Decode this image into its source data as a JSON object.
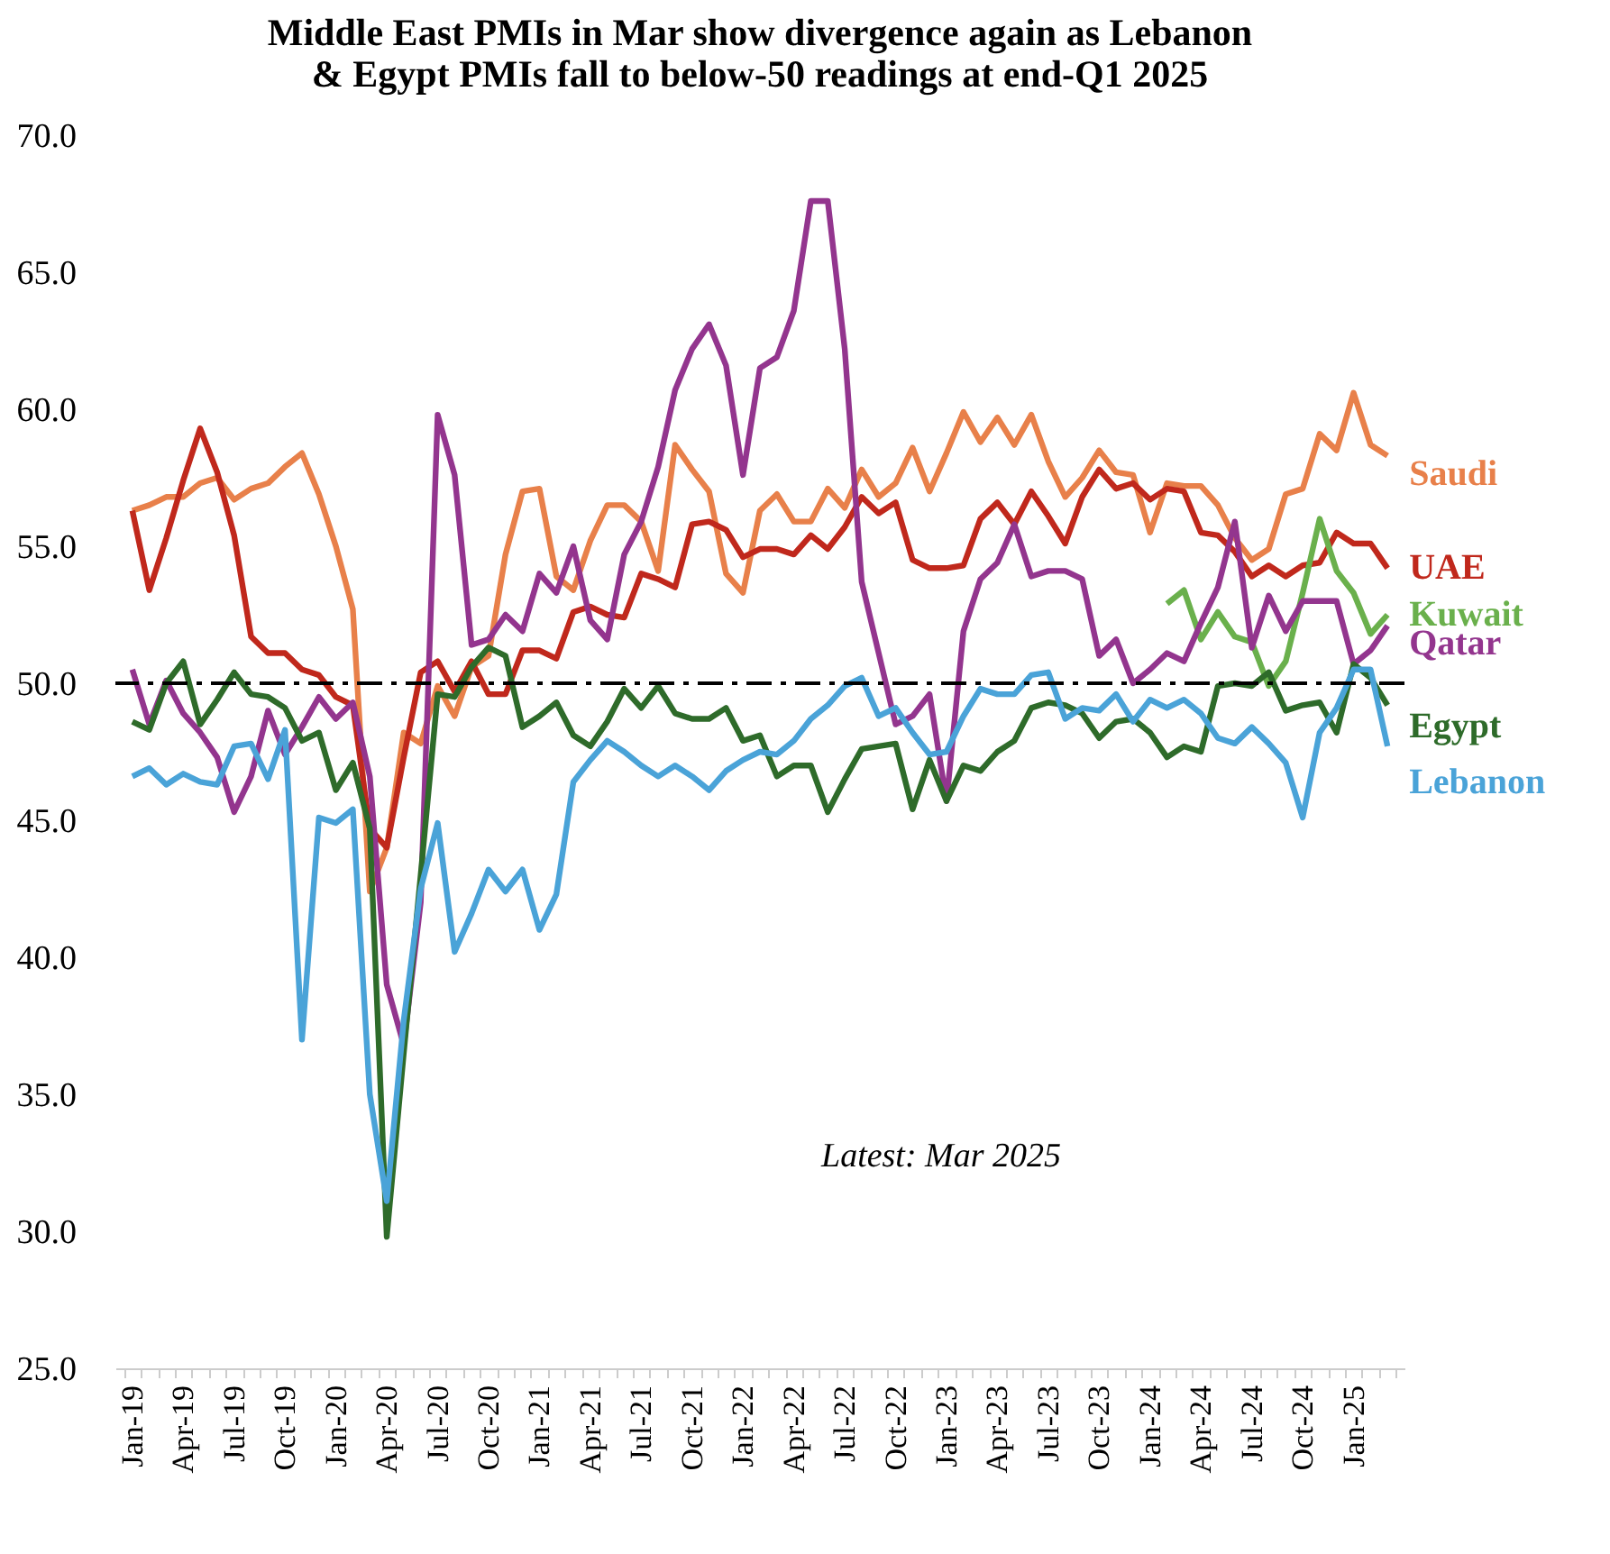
{
  "chart_data": {
    "type": "line",
    "title": [
      "Middle East PMIs in Mar show divergence again as Lebanon",
      "& Egypt PMIs fall to below-50 readings at end-Q1 2025"
    ],
    "categories": [
      "Jan-19",
      null,
      null,
      "Apr-19",
      null,
      null,
      "Jul-19",
      null,
      null,
      "Oct-19",
      null,
      null,
      "Jan-20",
      null,
      null,
      "Apr-20",
      null,
      null,
      "Jul-20",
      null,
      null,
      "Oct-20",
      null,
      null,
      "Jan-21",
      null,
      null,
      "Apr-21",
      null,
      null,
      "Jul-21",
      null,
      null,
      "Oct-21",
      null,
      null,
      "Jan-22",
      null,
      null,
      "Apr-22",
      null,
      null,
      "Jul-22",
      null,
      null,
      "Oct-22",
      null,
      null,
      "Jan-23",
      null,
      null,
      "Apr-23",
      null,
      null,
      "Jul-23",
      null,
      null,
      "Oct-23",
      null,
      null,
      "Jan-24",
      null,
      null,
      "Apr-24",
      null,
      null,
      "Jul-24",
      null,
      null,
      "Oct-24",
      null,
      null,
      "Jan-25",
      null,
      null
    ],
    "series": [
      {
        "name": "Saudi",
        "color": "#e8804a",
        "values": [
          56.3,
          56.5,
          56.8,
          56.8,
          57.3,
          57.5,
          56.7,
          57.1,
          57.3,
          57.9,
          58.4,
          56.9,
          55.0,
          52.7,
          42.4,
          44.0,
          48.2,
          47.8,
          49.9,
          48.8,
          50.6,
          51.0,
          54.7,
          57.0,
          57.1,
          53.9,
          53.4,
          55.2,
          56.5,
          56.5,
          55.9,
          54.1,
          58.7,
          57.8,
          57.0,
          54.0,
          53.3,
          56.3,
          56.9,
          55.9,
          55.9,
          57.1,
          56.4,
          57.8,
          56.8,
          57.3,
          58.6,
          57.0,
          58.4,
          59.9,
          58.8,
          59.7,
          58.7,
          59.8,
          58.1,
          56.8,
          57.5,
          58.5,
          57.7,
          57.6,
          55.5,
          57.3,
          57.2,
          57.2,
          56.5,
          55.3,
          54.5,
          54.9,
          56.9,
          57.1,
          59.1,
          58.5,
          60.6,
          58.7,
          58.3
        ]
      },
      {
        "name": "UAE",
        "color": "#c0281c",
        "values": [
          56.3,
          53.4,
          55.3,
          57.4,
          59.3,
          57.7,
          55.4,
          51.7,
          51.1,
          51.1,
          50.5,
          50.3,
          49.5,
          49.2,
          44.7,
          44.0,
          47.3,
          50.4,
          50.8,
          49.7,
          50.8,
          49.6,
          49.6,
          51.2,
          51.2,
          50.9,
          52.6,
          52.8,
          52.5,
          52.4,
          54.0,
          53.8,
          53.5,
          55.8,
          55.9,
          55.6,
          54.6,
          54.9,
          54.9,
          54.7,
          55.4,
          54.9,
          55.7,
          56.8,
          56.2,
          56.6,
          54.5,
          54.2,
          54.2,
          54.3,
          56.0,
          56.6,
          55.8,
          57.0,
          56.1,
          55.1,
          56.8,
          57.8,
          57.1,
          57.3,
          56.7,
          57.1,
          57.0,
          55.5,
          55.4,
          54.8,
          53.9,
          54.3,
          53.9,
          54.3,
          54.4,
          55.5,
          55.1,
          55.1,
          54.2
        ]
      },
      {
        "name": "Kuwait",
        "color": "#6ab04c",
        "values": [
          null,
          null,
          null,
          null,
          null,
          null,
          null,
          null,
          null,
          null,
          null,
          null,
          null,
          null,
          null,
          null,
          null,
          null,
          null,
          null,
          null,
          null,
          null,
          null,
          null,
          null,
          null,
          null,
          null,
          null,
          null,
          null,
          null,
          null,
          null,
          null,
          null,
          null,
          null,
          null,
          null,
          null,
          null,
          null,
          null,
          null,
          null,
          null,
          null,
          null,
          null,
          null,
          null,
          null,
          null,
          null,
          null,
          null,
          null,
          null,
          null,
          52.9,
          53.4,
          51.6,
          52.6,
          51.7,
          51.5,
          49.9,
          50.8,
          53.3,
          56.0,
          54.1,
          53.3,
          51.8,
          52.5
        ]
      },
      {
        "name": "Qatar",
        "color": "#93358e",
        "values": [
          50.5,
          48.5,
          50.1,
          48.9,
          48.2,
          47.3,
          45.3,
          46.6,
          49.0,
          47.4,
          48.4,
          49.5,
          48.7,
          49.3,
          46.6,
          39.0,
          36.8,
          42.0,
          59.8,
          57.6,
          51.4,
          51.6,
          52.5,
          51.9,
          54.0,
          53.3,
          55.0,
          52.3,
          51.6,
          54.7,
          55.9,
          57.9,
          60.7,
          62.2,
          63.1,
          61.6,
          57.6,
          61.5,
          61.9,
          63.6,
          67.6,
          67.6,
          62.2,
          53.7,
          51.1,
          48.5,
          48.8,
          49.6,
          45.7,
          51.9,
          53.8,
          54.4,
          55.8,
          53.9,
          54.1,
          54.1,
          53.8,
          51.0,
          51.6,
          50.0,
          50.5,
          51.1,
          50.8,
          52.2,
          53.5,
          55.9,
          51.3,
          53.2,
          51.9,
          53.0,
          53.0,
          53.0,
          50.7,
          51.2,
          52.1
        ]
      },
      {
        "name": "Egypt",
        "color": "#2e6b2a",
        "values": [
          48.6,
          48.3,
          50.0,
          50.8,
          48.5,
          49.4,
          50.4,
          49.6,
          49.5,
          49.1,
          47.9,
          48.2,
          46.1,
          47.1,
          44.7,
          29.8,
          36.5,
          43.0,
          49.6,
          49.5,
          50.6,
          51.3,
          51.0,
          48.4,
          48.8,
          49.3,
          48.1,
          47.7,
          48.6,
          49.8,
          49.1,
          49.9,
          48.9,
          48.7,
          48.7,
          49.1,
          47.9,
          48.1,
          46.6,
          47.0,
          47.0,
          45.3,
          46.5,
          47.6,
          47.7,
          47.8,
          45.4,
          47.2,
          45.7,
          47.0,
          46.8,
          47.5,
          47.9,
          49.1,
          49.3,
          49.2,
          48.9,
          48.0,
          48.6,
          48.7,
          48.2,
          47.3,
          47.7,
          47.5,
          49.9,
          50.0,
          49.9,
          50.4,
          49.0,
          49.2,
          49.3,
          48.2,
          50.7,
          50.2,
          49.2
        ]
      },
      {
        "name": "Lebanon",
        "color": "#4aa3d8",
        "values": [
          46.6,
          46.9,
          46.3,
          46.7,
          46.4,
          46.3,
          47.7,
          47.8,
          46.5,
          48.3,
          37.0,
          45.1,
          44.9,
          45.4,
          35.0,
          31.1,
          37.7,
          42.5,
          44.9,
          40.2,
          41.6,
          43.2,
          42.4,
          43.2,
          41.0,
          42.3,
          46.4,
          47.2,
          47.9,
          47.5,
          47.0,
          46.6,
          47.0,
          46.6,
          46.1,
          46.8,
          47.2,
          47.5,
          47.4,
          47.9,
          48.7,
          49.2,
          49.9,
          50.2,
          48.8,
          49.1,
          48.2,
          47.4,
          47.5,
          48.8,
          49.8,
          49.6,
          49.6,
          50.3,
          50.4,
          48.7,
          49.1,
          49.0,
          49.6,
          48.6,
          49.4,
          49.1,
          49.4,
          48.9,
          48.0,
          47.8,
          48.4,
          47.8,
          47.1,
          45.1,
          48.2,
          49.1,
          50.5,
          50.5,
          47.7
        ]
      }
    ],
    "ylim": [
      25,
      70
    ],
    "yticks": [
      {
        "value": 25,
        "label": "25.0"
      },
      {
        "value": 30,
        "label": "30.0"
      },
      {
        "value": 35,
        "label": "35.0"
      },
      {
        "value": 40,
        "label": "40.0"
      },
      {
        "value": 45,
        "label": "45.0"
      },
      {
        "value": 50,
        "label": "50.0"
      },
      {
        "value": 55,
        "label": "55.0"
      },
      {
        "value": 60,
        "label": "60.0"
      },
      {
        "value": 65,
        "label": "65.0"
      },
      {
        "value": 70,
        "label": "70.0"
      }
    ],
    "ref_lines": [
      {
        "axis": "y",
        "value": 50,
        "color": "#000000",
        "line_style": "dashed"
      }
    ],
    "annotations": [
      "Latest: Mar 2025"
    ]
  }
}
